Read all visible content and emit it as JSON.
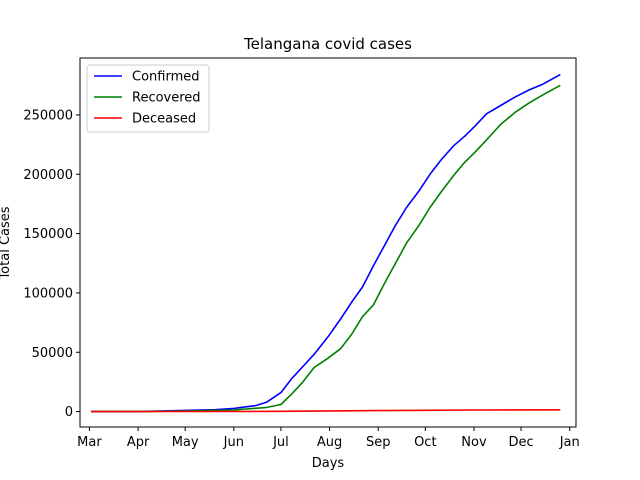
{
  "chart_data": {
    "type": "line",
    "title": "Telangana covid cases",
    "xlabel": "Days",
    "ylabel": "Total Cases",
    "x_ticks": [
      "Mar",
      "Apr",
      "May",
      "Jun",
      "Jul",
      "Aug",
      "Sep",
      "Oct",
      "Nov",
      "Dec",
      "Jan"
    ],
    "y_ticks": [
      0,
      50000,
      100000,
      150000,
      200000,
      250000
    ],
    "y_tick_labels": [
      "0",
      "50000",
      "100000",
      "150000",
      "200000",
      "250000"
    ],
    "ylim": [
      -13000,
      298000
    ],
    "xlim": [
      "2020-02-24",
      "2021-01-05"
    ],
    "grid": false,
    "legend_position": "top-left",
    "series": [
      {
        "name": "Confirmed",
        "color": "#0000ff",
        "points": [
          [
            "2020-03-02",
            0
          ],
          [
            "2020-04-01",
            100
          ],
          [
            "2020-05-01",
            1000
          ],
          [
            "2020-05-20",
            1600
          ],
          [
            "2020-06-01",
            2700
          ],
          [
            "2020-06-15",
            5000
          ],
          [
            "2020-06-22",
            8000
          ],
          [
            "2020-07-01",
            16000
          ],
          [
            "2020-07-08",
            28000
          ],
          [
            "2020-07-15",
            38000
          ],
          [
            "2020-07-22",
            48000
          ],
          [
            "2020-07-31",
            63000
          ],
          [
            "2020-08-08",
            78000
          ],
          [
            "2020-08-15",
            92000
          ],
          [
            "2020-08-22",
            105000
          ],
          [
            "2020-08-29",
            123000
          ],
          [
            "2020-09-05",
            140000
          ],
          [
            "2020-09-12",
            157000
          ],
          [
            "2020-09-19",
            172000
          ],
          [
            "2020-09-27",
            186000
          ],
          [
            "2020-10-04",
            200000
          ],
          [
            "2020-10-11",
            212000
          ],
          [
            "2020-10-19",
            224000
          ],
          [
            "2020-10-26",
            232000
          ],
          [
            "2020-11-02",
            241000
          ],
          [
            "2020-11-09",
            251000
          ],
          [
            "2020-11-18",
            258000
          ],
          [
            "2020-11-27",
            265000
          ],
          [
            "2020-12-06",
            271000
          ],
          [
            "2020-12-15",
            276000
          ],
          [
            "2020-12-26",
            284000
          ]
        ]
      },
      {
        "name": "Recovered",
        "color": "#008000",
        "points": [
          [
            "2020-03-02",
            0
          ],
          [
            "2020-04-01",
            0
          ],
          [
            "2020-05-01",
            500
          ],
          [
            "2020-06-01",
            1300
          ],
          [
            "2020-06-22",
            3500
          ],
          [
            "2020-07-01",
            6000
          ],
          [
            "2020-07-08",
            15000
          ],
          [
            "2020-07-15",
            25000
          ],
          [
            "2020-07-22",
            37000
          ],
          [
            "2020-07-31",
            45000
          ],
          [
            "2020-08-08",
            53000
          ],
          [
            "2020-08-15",
            65000
          ],
          [
            "2020-08-22",
            80000
          ],
          [
            "2020-08-29",
            90000
          ],
          [
            "2020-09-05",
            108000
          ],
          [
            "2020-09-12",
            125000
          ],
          [
            "2020-09-19",
            142000
          ],
          [
            "2020-09-27",
            157000
          ],
          [
            "2020-10-04",
            172000
          ],
          [
            "2020-10-11",
            185000
          ],
          [
            "2020-10-19",
            199000
          ],
          [
            "2020-10-26",
            210000
          ],
          [
            "2020-11-02",
            219000
          ],
          [
            "2020-11-09",
            229000
          ],
          [
            "2020-11-18",
            242000
          ],
          [
            "2020-11-27",
            252000
          ],
          [
            "2020-12-06",
            260000
          ],
          [
            "2020-12-15",
            267000
          ],
          [
            "2020-12-26",
            275000
          ]
        ]
      },
      {
        "name": "Deceased",
        "color": "#ff0000",
        "points": [
          [
            "2020-03-02",
            0
          ],
          [
            "2020-05-01",
            25
          ],
          [
            "2020-06-01",
            100
          ],
          [
            "2020-07-01",
            250
          ],
          [
            "2020-08-01",
            600
          ],
          [
            "2020-09-01",
            800
          ],
          [
            "2020-10-01",
            1100
          ],
          [
            "2020-11-01",
            1300
          ],
          [
            "2020-12-01",
            1450
          ],
          [
            "2020-12-26",
            1530
          ]
        ]
      }
    ]
  }
}
